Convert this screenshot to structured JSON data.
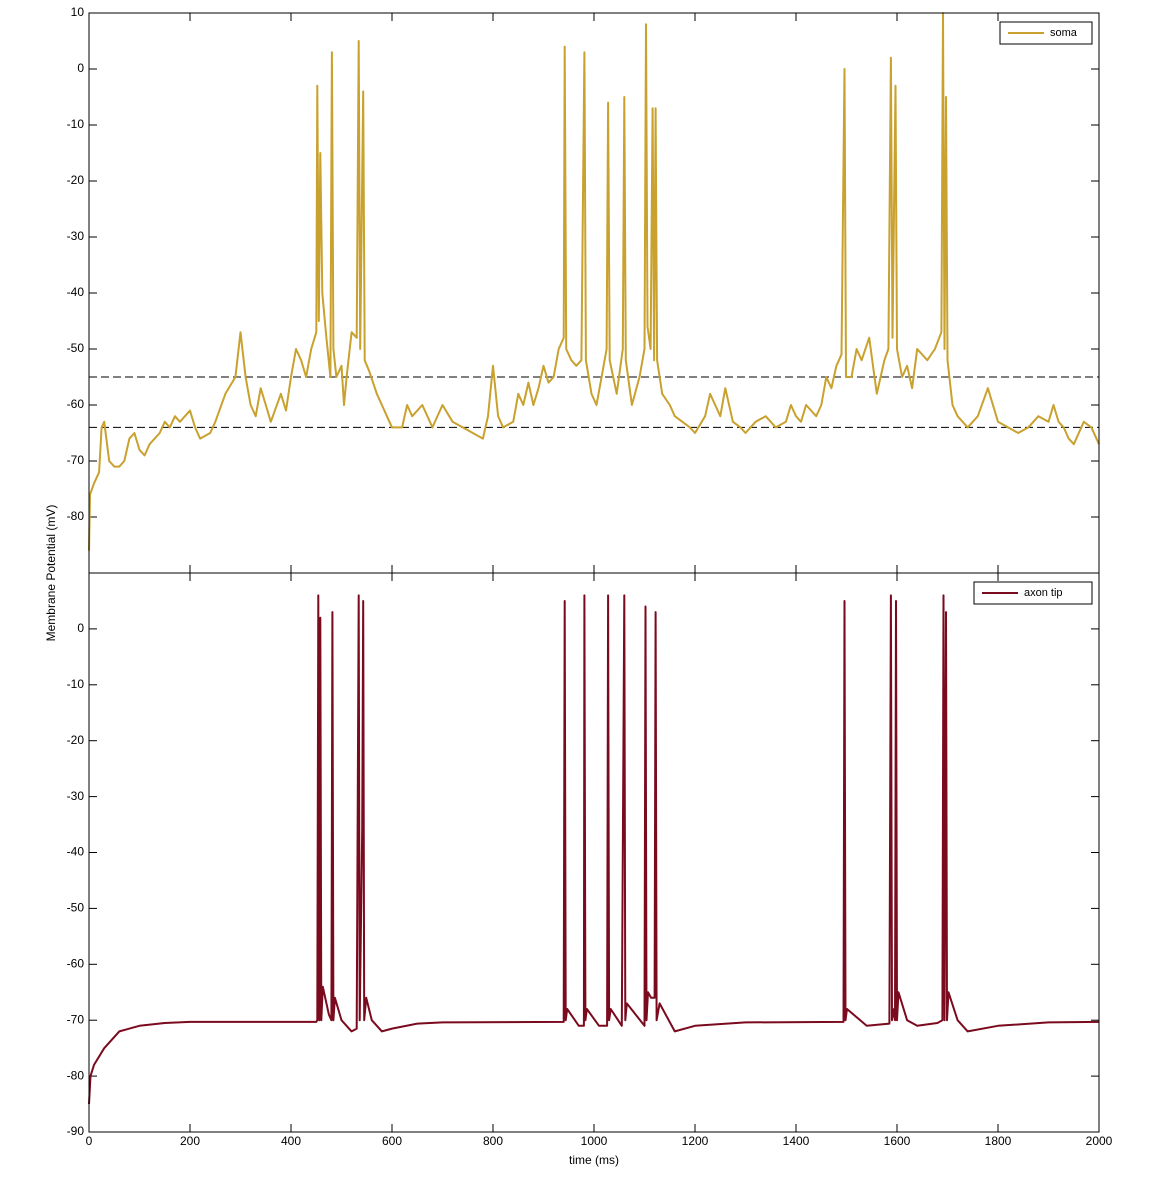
{
  "chart_data": [
    {
      "type": "line",
      "ylabel": "Membrane Potential (mV)",
      "legend": "upper right",
      "show_xtick_labels": false,
      "xlim": [
        0,
        2000
      ],
      "xticks": [
        0,
        200,
        400,
        600,
        800,
        1000,
        1200,
        1400,
        1600,
        1800,
        2000
      ],
      "ylim": [
        -90,
        10
      ],
      "yticks": [
        -80,
        -70,
        -60,
        -50,
        -40,
        -30,
        -20,
        -10,
        0,
        10
      ],
      "hlines": [
        -55,
        -64
      ],
      "x": [
        0,
        2,
        10,
        20,
        25,
        30,
        40,
        50,
        60,
        70,
        80,
        90,
        100,
        110,
        120,
        140,
        150,
        160,
        170,
        180,
        200,
        210,
        220,
        240,
        250,
        270,
        290,
        300,
        310,
        320,
        330,
        340,
        350,
        360,
        380,
        390,
        400,
        410,
        420,
        430,
        440,
        450,
        452,
        455,
        458,
        462,
        470,
        478,
        481,
        484,
        490,
        500,
        505,
        510,
        520,
        530,
        534,
        537,
        543,
        546,
        555,
        570,
        580,
        590,
        600,
        620,
        630,
        640,
        660,
        670,
        680,
        700,
        720,
        740,
        760,
        780,
        790,
        800,
        810,
        820,
        840,
        850,
        860,
        870,
        880,
        890,
        900,
        910,
        920,
        930,
        940,
        942,
        945,
        955,
        965,
        975,
        981,
        984,
        995,
        1005,
        1015,
        1025,
        1028,
        1031,
        1045,
        1057,
        1060,
        1063,
        1075,
        1090,
        1100,
        1103,
        1106,
        1112,
        1116,
        1119,
        1122,
        1125,
        1135,
        1150,
        1160,
        1175,
        1190,
        1200,
        1220,
        1230,
        1240,
        1250,
        1260,
        1275,
        1290,
        1300,
        1320,
        1340,
        1360,
        1380,
        1390,
        1400,
        1410,
        1420,
        1440,
        1450,
        1460,
        1470,
        1480,
        1490,
        1496,
        1499,
        1510,
        1520,
        1530,
        1545,
        1560,
        1575,
        1583,
        1588,
        1591,
        1597,
        1600,
        1610,
        1620,
        1630,
        1640,
        1660,
        1675,
        1688,
        1691,
        1694,
        1697,
        1700,
        1710,
        1720,
        1740,
        1760,
        1780,
        1800,
        1820,
        1840,
        1860,
        1880,
        1900,
        1910,
        1920,
        1930,
        1940,
        1950,
        1960,
        1970,
        1985,
        2000
      ],
      "series": [
        {
          "name": "soma",
          "color": "#c9a12e",
          "values": [
            -86,
            -76,
            -74,
            -72,
            -64,
            -63,
            -70,
            -71,
            -71,
            -70,
            -66,
            -65,
            -68,
            -69,
            -67,
            -65,
            -63,
            -64,
            -62,
            -63,
            -61,
            -64,
            -66,
            -65,
            -63,
            -58,
            -55,
            -47,
            -55,
            -60,
            -62,
            -57,
            -60,
            -63,
            -58,
            -61,
            -55,
            -50,
            -52,
            -55,
            -50,
            -47,
            -3,
            -45,
            -15,
            -40,
            -48,
            -55,
            3,
            -50,
            -55,
            -53,
            -60,
            -55,
            -47,
            -48,
            5,
            -50,
            -4,
            -52,
            -54,
            -58,
            -60,
            -62,
            -64,
            -64,
            -60,
            -62,
            -60,
            -62,
            -64,
            -60,
            -63,
            -64,
            -65,
            -66,
            -62,
            -53,
            -62,
            -64,
            -63,
            -58,
            -60,
            -56,
            -60,
            -57,
            -53,
            -56,
            -55,
            -50,
            -48,
            4,
            -50,
            -52,
            -53,
            -52,
            3,
            -52,
            -58,
            -60,
            -55,
            -50,
            -6,
            -52,
            -58,
            -50,
            -5,
            -52,
            -60,
            -55,
            -50,
            8,
            -46,
            -50,
            -7,
            -52,
            -7,
            -52,
            -58,
            -60,
            -62,
            -63,
            -64,
            -65,
            -62,
            -58,
            -60,
            -62,
            -57,
            -63,
            -64,
            -65,
            -63,
            -62,
            -64,
            -63,
            -60,
            -62,
            -63,
            -60,
            -62,
            -60,
            -55,
            -57,
            -53,
            -51,
            0,
            -55,
            -55,
            -50,
            -52,
            -48,
            -58,
            -52,
            -50,
            2,
            -48,
            -3,
            -50,
            -55,
            -53,
            -57,
            -50,
            -52,
            -50,
            -47,
            10,
            -50,
            -5,
            -52,
            -60,
            -62,
            -64,
            -62,
            -57,
            -63,
            -64,
            -65,
            -64,
            -62,
            -63,
            -60,
            -63,
            -64,
            -66,
            -67,
            -65,
            -63,
            -64,
            -67
          ]
        }
      ]
    },
    {
      "type": "line",
      "xlabel": "time (ms)",
      "legend": "upper right",
      "show_xtick_labels": true,
      "xlim": [
        0,
        2000
      ],
      "xticks": [
        0,
        200,
        400,
        600,
        800,
        1000,
        1200,
        1400,
        1600,
        1800,
        2000
      ],
      "ylim": [
        -90,
        10
      ],
      "yticks": [
        -90,
        -80,
        -70,
        -60,
        -50,
        -40,
        -30,
        -20,
        -10,
        0
      ],
      "x": [
        0,
        3,
        10,
        30,
        60,
        100,
        150,
        200,
        450,
        452,
        454,
        456,
        458,
        460,
        463,
        475,
        480,
        482,
        484,
        487,
        500,
        520,
        530,
        534,
        536,
        541,
        543,
        545,
        549,
        560,
        580,
        600,
        650,
        700,
        940,
        942,
        944,
        947,
        970,
        980,
        981,
        983,
        986,
        1010,
        1026,
        1028,
        1030,
        1033,
        1055,
        1060,
        1062,
        1065,
        1100,
        1102,
        1104,
        1107,
        1113,
        1120,
        1122,
        1124,
        1130,
        1160,
        1200,
        1300,
        1494,
        1496,
        1498,
        1501,
        1540,
        1585,
        1588,
        1590,
        1594,
        1596,
        1598,
        1600,
        1603,
        1620,
        1640,
        1680,
        1690,
        1692,
        1694,
        1697,
        1699,
        1702,
        1720,
        1740,
        1800,
        1900,
        2000
      ],
      "series": [
        {
          "name": "axon tip",
          "color": "#7a0a1e",
          "values": [
            -85,
            -80,
            -78,
            -75,
            -72,
            -71,
            -70.5,
            -70.3,
            -70.3,
            -70,
            6,
            -70,
            2,
            -70,
            -64,
            -69,
            -70,
            3,
            -70,
            -66,
            -70,
            -72,
            -71.5,
            6,
            -70,
            -36,
            5,
            -70,
            -66,
            -70,
            -72,
            -71.5,
            -70.6,
            -70.4,
            -70.3,
            5,
            -70,
            -68,
            -71,
            -71,
            6,
            -70,
            -68,
            -71,
            -71,
            6,
            -70,
            -68,
            -71,
            6,
            -70,
            -67,
            -71,
            4,
            -70,
            -65,
            -66,
            -66,
            3,
            -70,
            -67,
            -72,
            -71,
            -70.4,
            -70.3,
            5,
            -70,
            -68,
            -71,
            -70.6,
            6,
            -70,
            -68,
            -70,
            5,
            -70,
            -65,
            -70,
            -71,
            -70.5,
            -70,
            6,
            -70,
            3,
            -70,
            -65,
            -70,
            -72,
            -71,
            -70.4,
            -70.3
          ]
        }
      ]
    }
  ]
}
